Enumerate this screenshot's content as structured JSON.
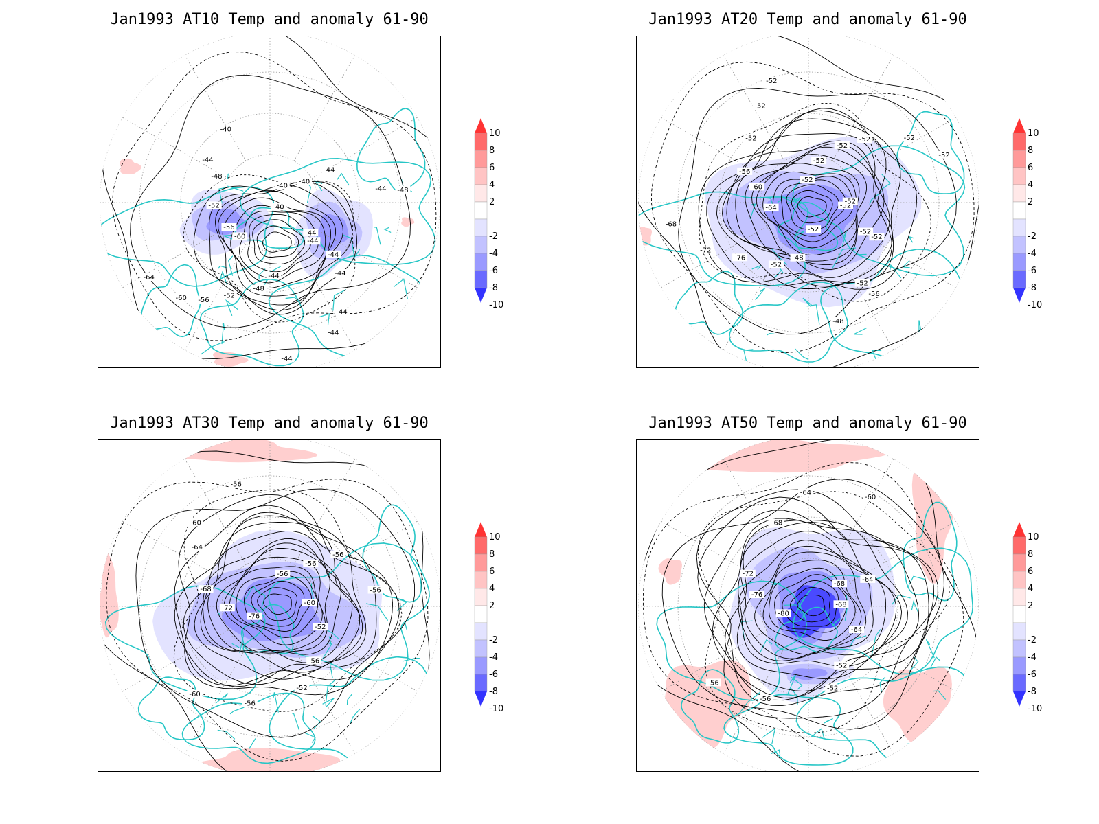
{
  "panels": [
    {
      "title": "Jan1993 AT10 Temp and anomaly 61-90",
      "contour_labels": [
        "-44",
        "-44",
        "-44",
        "-44",
        "-44",
        "-44",
        "-44",
        "-48",
        "-52",
        "-56",
        "-60",
        "-64",
        "-60",
        "-56",
        "-52",
        "-48",
        "-44",
        "-40",
        "-40",
        "-40",
        "-40",
        "-44",
        "-44",
        "-48",
        "-44"
      ],
      "anomaly_regions": [
        "negative-west",
        "negative-east",
        "positive-patches"
      ]
    },
    {
      "title": "Jan1993 AT20 Temp and anomaly 61-90",
      "contour_labels": [
        "-52",
        "-52",
        "-52",
        "-52",
        "-56",
        "-48",
        "-52",
        "-48",
        "-52",
        "-76",
        "-72",
        "-68",
        "-64",
        "-60",
        "-56",
        "-52",
        "-52",
        "-52",
        "-52",
        "-52",
        "-52",
        "-52",
        "-52",
        "-52",
        "-52"
      ],
      "anomaly_regions": [
        "negative-center"
      ]
    },
    {
      "title": "Jan1993 AT30 Temp and anomaly 61-90",
      "contour_labels": [
        "-60",
        "-52",
        "-56",
        "-52",
        "-56",
        "-60",
        "-76",
        "-72",
        "-68",
        "-64",
        "-60",
        "-56",
        "-56",
        "-56",
        "-56",
        "-56"
      ],
      "anomaly_regions": [
        "negative-center",
        "positive-rim"
      ]
    },
    {
      "title": "Jan1993 AT50 Temp and anomaly 61-90",
      "contour_labels": [
        "-68",
        "-64",
        "-52",
        "-52",
        "-56",
        "-56",
        "-80",
        "-76",
        "-72",
        "-68",
        "-64",
        "-60",
        "-68",
        "-64"
      ],
      "anomaly_regions": [
        "negative-center",
        "positive-ring"
      ]
    }
  ],
  "colorbar": {
    "labels": [
      "10",
      "8",
      "6",
      "4",
      "2",
      "-2",
      "-4",
      "-6",
      "-8",
      "-10"
    ],
    "colors": [
      "#ff3333",
      "#ff6a6a",
      "#ff9a9a",
      "#ffc4c4",
      "#ffe8e8",
      "#ffffff",
      "#e3e3ff",
      "#c2c2ff",
      "#9a9aff",
      "#6a6aff",
      "#3333ff"
    ]
  },
  "colors": {
    "coast": "#26c6c6",
    "contour": "#000000",
    "grid": "#888888"
  }
}
